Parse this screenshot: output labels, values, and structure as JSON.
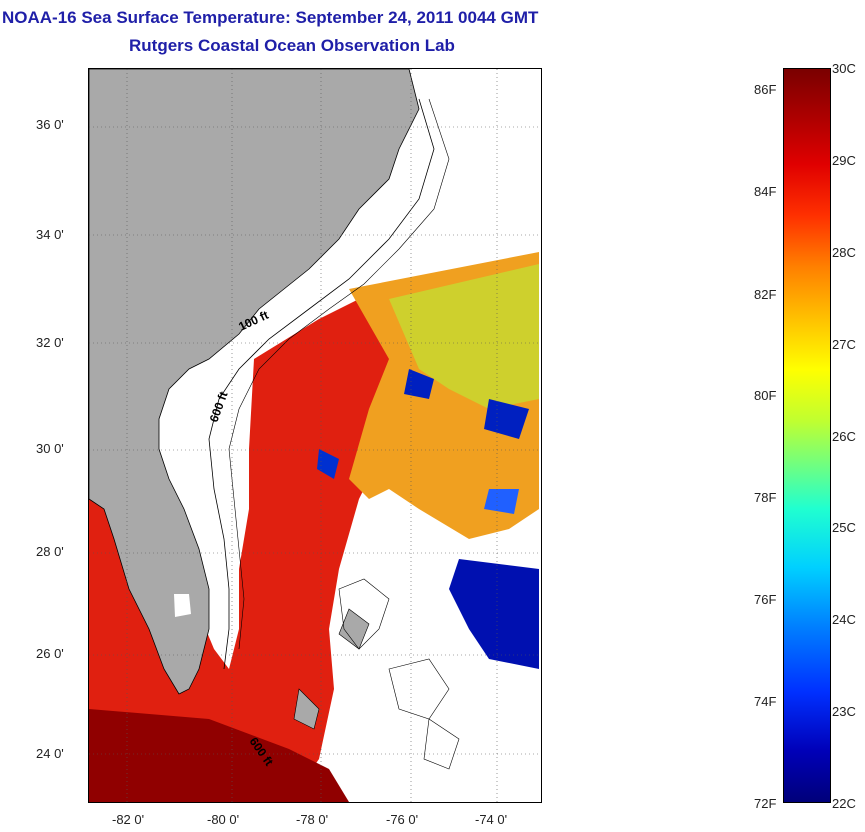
{
  "title": {
    "line1": "NOAA-16 Sea Surface Temperature:  September 24, 2011 0044 GMT",
    "line2": "Rutgers Coastal Ocean Observation Lab"
  },
  "map": {
    "lat_labels": [
      "36 0'",
      "34 0'",
      "32 0'",
      "30 0'",
      "28 0'",
      "26 0'",
      "24 0'"
    ],
    "lon_labels": [
      "-82 0'",
      "-80 0'",
      "-78 0'",
      "-76 0'",
      "-74 0'"
    ],
    "isobath_labels": [
      "100 ft",
      "600 ft",
      "600 ft"
    ],
    "colors": {
      "land": "#a9a9a9",
      "no_data": "#ffffff",
      "grid": "#555555"
    }
  },
  "colorbar": {
    "fahrenheit_labels": [
      "86F",
      "84F",
      "82F",
      "80F",
      "78F",
      "76F",
      "74F",
      "72F"
    ],
    "celsius_labels": [
      "30C",
      "29C",
      "28C",
      "27C",
      "26C",
      "25C",
      "24C",
      "23C",
      "22C"
    ],
    "range_f": [
      72,
      86.5
    ],
    "range_c": [
      22,
      30
    ]
  }
}
